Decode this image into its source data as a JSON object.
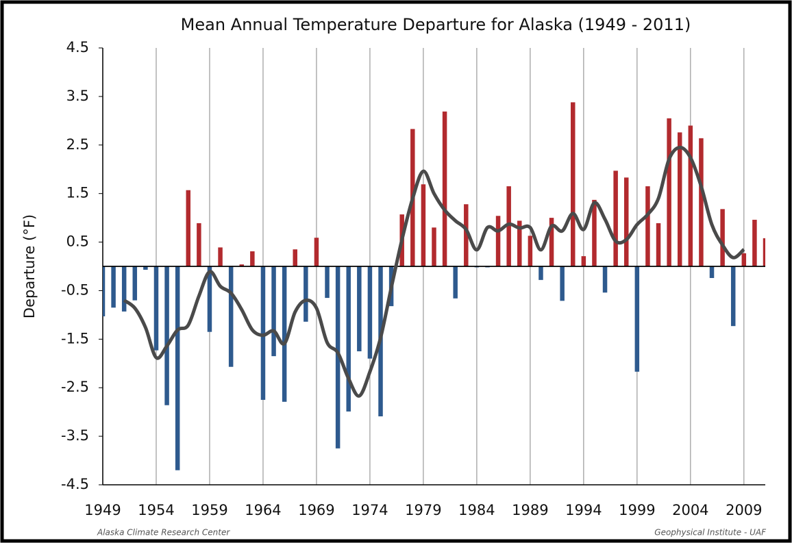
{
  "chart_data": {
    "type": "bar",
    "title": "Mean Annual Temperature Departure for Alaska (1949 - 2011)",
    "y_label": "Departure (°F)",
    "source_left": "Alaska Climate Research Center",
    "source_right": "Geophysical Institute - UAF",
    "x": [
      1949,
      1950,
      1951,
      1952,
      1953,
      1954,
      1955,
      1956,
      1957,
      1958,
      1959,
      1960,
      1961,
      1962,
      1963,
      1964,
      1965,
      1966,
      1967,
      1968,
      1969,
      1970,
      1971,
      1972,
      1973,
      1974,
      1975,
      1976,
      1977,
      1978,
      1979,
      1980,
      1981,
      1982,
      1983,
      1984,
      1985,
      1986,
      1987,
      1988,
      1989,
      1990,
      1991,
      1992,
      1993,
      1994,
      1995,
      1996,
      1997,
      1998,
      1999,
      2000,
      2001,
      2002,
      2003,
      2004,
      2005,
      2006,
      2007,
      2008,
      2009,
      2010,
      2011
    ],
    "values": [
      -1.03,
      -0.85,
      -0.93,
      -0.7,
      -0.07,
      -1.73,
      -2.86,
      -4.2,
      1.57,
      0.89,
      -1.35,
      0.39,
      -2.07,
      0.04,
      0.31,
      -2.75,
      -1.85,
      -2.79,
      0.35,
      -1.14,
      0.59,
      -0.65,
      -3.75,
      -2.99,
      -1.75,
      -1.9,
      -3.09,
      -0.82,
      1.07,
      2.83,
      1.69,
      0.8,
      3.19,
      -0.66,
      1.28,
      -0.02,
      -0.02,
      1.04,
      1.65,
      0.94,
      0.63,
      -0.28,
      1.0,
      -0.71,
      3.38,
      0.21,
      1.37,
      -0.54,
      1.97,
      1.83,
      -2.17,
      1.65,
      0.89,
      3.05,
      2.76,
      2.9,
      2.64,
      -0.24,
      1.18,
      -1.23,
      0.27,
      0.96,
      0.58
    ],
    "smoothed": [
      null,
      null,
      -0.7,
      -0.86,
      -1.26,
      -1.88,
      -1.64,
      -1.31,
      -1.21,
      -0.61,
      -0.11,
      -0.41,
      -0.55,
      -0.89,
      -1.31,
      -1.42,
      -1.33,
      -1.59,
      -0.94,
      -0.7,
      -0.86,
      -1.57,
      -1.78,
      -2.31,
      -2.67,
      -2.17,
      -1.47,
      -0.44,
      0.55,
      1.4,
      1.96,
      1.5,
      1.16,
      0.94,
      0.76,
      0.34,
      0.8,
      0.73,
      0.87,
      0.79,
      0.8,
      0.34,
      0.83,
      0.73,
      1.09,
      0.76,
      1.31,
      0.97,
      0.52,
      0.55,
      0.86,
      1.07,
      1.4,
      2.21,
      2.45,
      2.24,
      1.65,
      0.86,
      0.44,
      0.18,
      0.35,
      null,
      null
    ],
    "positive_color": "#b22a2e",
    "negative_color": "#2e5a8e",
    "line_color": "#4a4a4a",
    "xlim": [
      1949,
      2011
    ],
    "ylim": [
      -4.5,
      4.5
    ],
    "xticks": [
      1949,
      1954,
      1959,
      1964,
      1969,
      1974,
      1979,
      1984,
      1989,
      1994,
      1999,
      2004,
      2009
    ],
    "yticks": [
      4.5,
      3.5,
      2.5,
      1.5,
      0.5,
      -0.5,
      -1.5,
      -2.5,
      -3.5,
      -4.5
    ],
    "grid": true
  }
}
